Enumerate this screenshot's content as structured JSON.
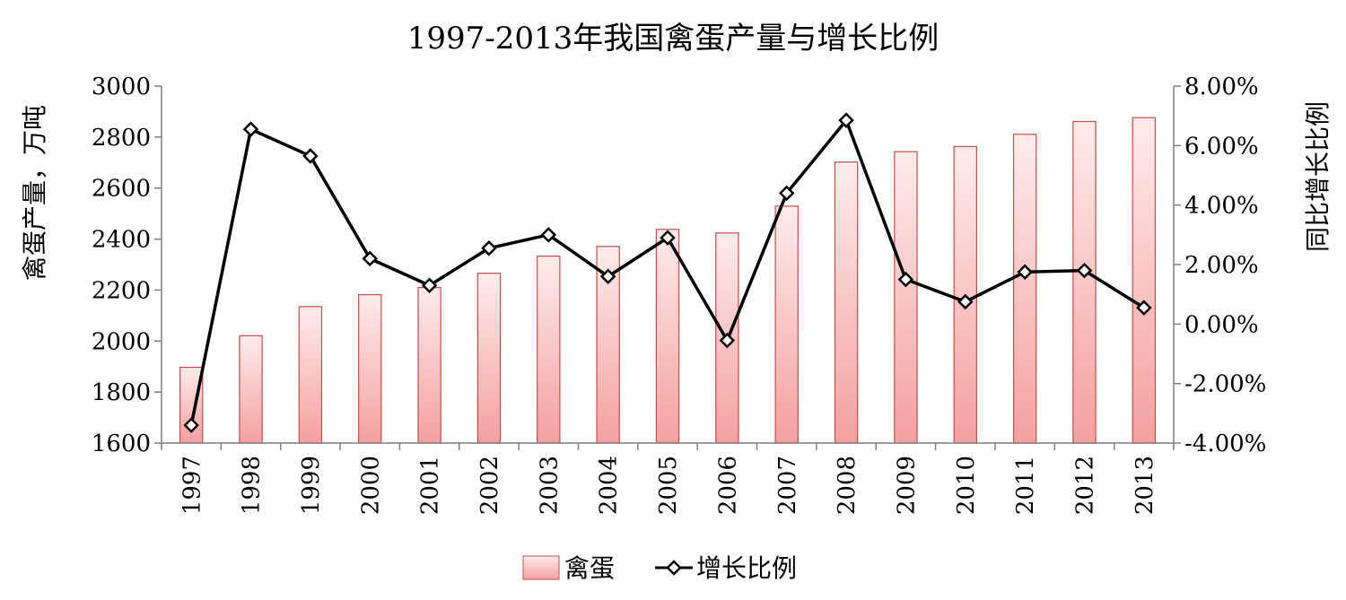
{
  "chart_data": {
    "type": "bar",
    "title": "1997-2013年我国禽蛋产量与增长比例",
    "ylabel": "禽蛋产量，万吨",
    "y2label": "同比增长比例",
    "categories": [
      "1997",
      "1998",
      "1999",
      "2000",
      "2001",
      "2002",
      "2003",
      "2004",
      "2005",
      "2006",
      "2007",
      "2008",
      "2009",
      "2010",
      "2011",
      "2012",
      "2013"
    ],
    "ylim": [
      1600,
      3000
    ],
    "y_ticks": [
      "1600",
      "1800",
      "2000",
      "2200",
      "2400",
      "2600",
      "2800",
      "3000"
    ],
    "y2lim": [
      -4,
      8
    ],
    "y2_ticks": [
      "-4.00%",
      "-2.00%",
      "0.00%",
      "2.00%",
      "4.00%",
      "6.00%",
      "8.00%"
    ],
    "series": [
      {
        "name": "禽蛋",
        "type": "bar",
        "values": [
          1897,
          2021,
          2135,
          2182,
          2210,
          2266,
          2333,
          2371,
          2438,
          2424,
          2529,
          2702,
          2743,
          2763,
          2811,
          2861,
          2876
        ]
      },
      {
        "name": "增长比例",
        "type": "line",
        "axis": "right",
        "values": [
          -3.4,
          6.55,
          5.65,
          2.2,
          1.3,
          2.55,
          3.0,
          1.6,
          2.9,
          -0.55,
          4.4,
          6.85,
          1.5,
          0.75,
          1.75,
          1.8,
          0.55
        ]
      }
    ],
    "legend_position": "bottom",
    "grid": false
  },
  "colors": {
    "bar_top": "#ffecec",
    "bar_bottom": "#f4a0a0",
    "bar_border": "#c0504d",
    "line": "#000000",
    "marker_fill": "#ffffff",
    "axis": "#7f7f7f"
  }
}
